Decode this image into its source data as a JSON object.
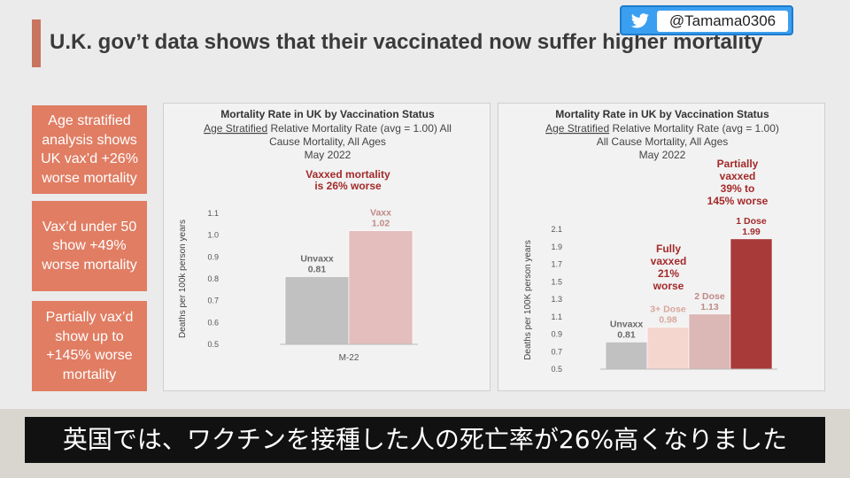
{
  "header": {
    "title": "U.K. gov’t data shows that their vaccinated now suffer higher mortality"
  },
  "badge": {
    "icon": "twitter-bird-icon",
    "handle": "@Tamama0306"
  },
  "sidebar": [
    {
      "text": "Age stratified analysis shows UK vax’d +26% worse mortality"
    },
    {
      "text": "Vax’d under 50 show +49% worse mortality"
    },
    {
      "text": "Partially vax’d show up to +145% worse mortality"
    }
  ],
  "subtitle": "英国では、ワクチンを接種した人の死亡率が26%高くなりました",
  "colors": {
    "accent": "#e07d63",
    "title_bar": "#c9745f",
    "unvaxx": "#c1c1c1",
    "vaxx": "#e3bebd",
    "dose3": "#f5d6cf",
    "dose2": "#dbb7b6",
    "dose1": "#a83a3a",
    "annotation": "#a32a2a"
  },
  "chart_data": [
    {
      "type": "bar",
      "title": "Mortality Rate in UK by Vaccination Status",
      "subtitle_underlined": "Age Stratified",
      "subtitle_rest": " Relative Mortality Rate (avg = 1.00) All",
      "subtitle_line2": "Cause Mortality, All Ages",
      "subtitle_line3": "May 2022",
      "ylabel": "Deaths per 100k person years",
      "xlabel": "M-22",
      "ylim": [
        0.5,
        1.1
      ],
      "yticks": [
        "0.5",
        "0.6",
        "0.7",
        "0.8",
        "0.9",
        "1.0",
        "1.1"
      ],
      "categories": [
        "Unvaxx",
        "Vaxx"
      ],
      "values": [
        0.81,
        1.02
      ],
      "value_labels": [
        "0.81",
        "1.02"
      ],
      "bar_colors": [
        "#c1c1c1",
        "#e3bebd"
      ],
      "label_colors": [
        "#6a6a6a",
        "#c08a88"
      ],
      "annotations": [
        {
          "lines": [
            "Vaxxed  mortality",
            "is 26% worse"
          ]
        }
      ]
    },
    {
      "type": "bar",
      "title": "Mortality Rate in UK by Vaccination Status",
      "subtitle_underlined": "Age Stratified",
      "subtitle_rest": " Relative Mortality Rate (avg = 1.00)",
      "subtitle_line2": "All Cause Mortality, All Ages",
      "subtitle_line3": "May 2022",
      "ylabel": "Deaths per 100K person years",
      "ylim": [
        0.5,
        2.1
      ],
      "yticks": [
        "0.5",
        "0.7",
        "0.9",
        "1.1",
        "1.3",
        "1.5",
        "1.7",
        "1.9",
        "2.1"
      ],
      "categories": [
        "Unvaxx",
        "3+ Dose",
        "2 Dose",
        "1 Dose"
      ],
      "values": [
        0.81,
        0.98,
        1.13,
        1.99
      ],
      "value_labels": [
        "0.81",
        "0.98",
        "1.13",
        "1.99"
      ],
      "bar_colors": [
        "#c1c1c1",
        "#f5d6cf",
        "#dbb7b6",
        "#a83a3a"
      ],
      "label_colors": [
        "#6a6a6a",
        "#d9a79b",
        "#c08a88",
        "#a32a2a"
      ],
      "annotations": [
        {
          "lines": [
            "Fully",
            "vaxxed",
            "21%",
            "worse"
          ]
        },
        {
          "lines": [
            "Partially",
            "vaxxed",
            "39% to",
            "145% worse"
          ]
        }
      ]
    }
  ]
}
